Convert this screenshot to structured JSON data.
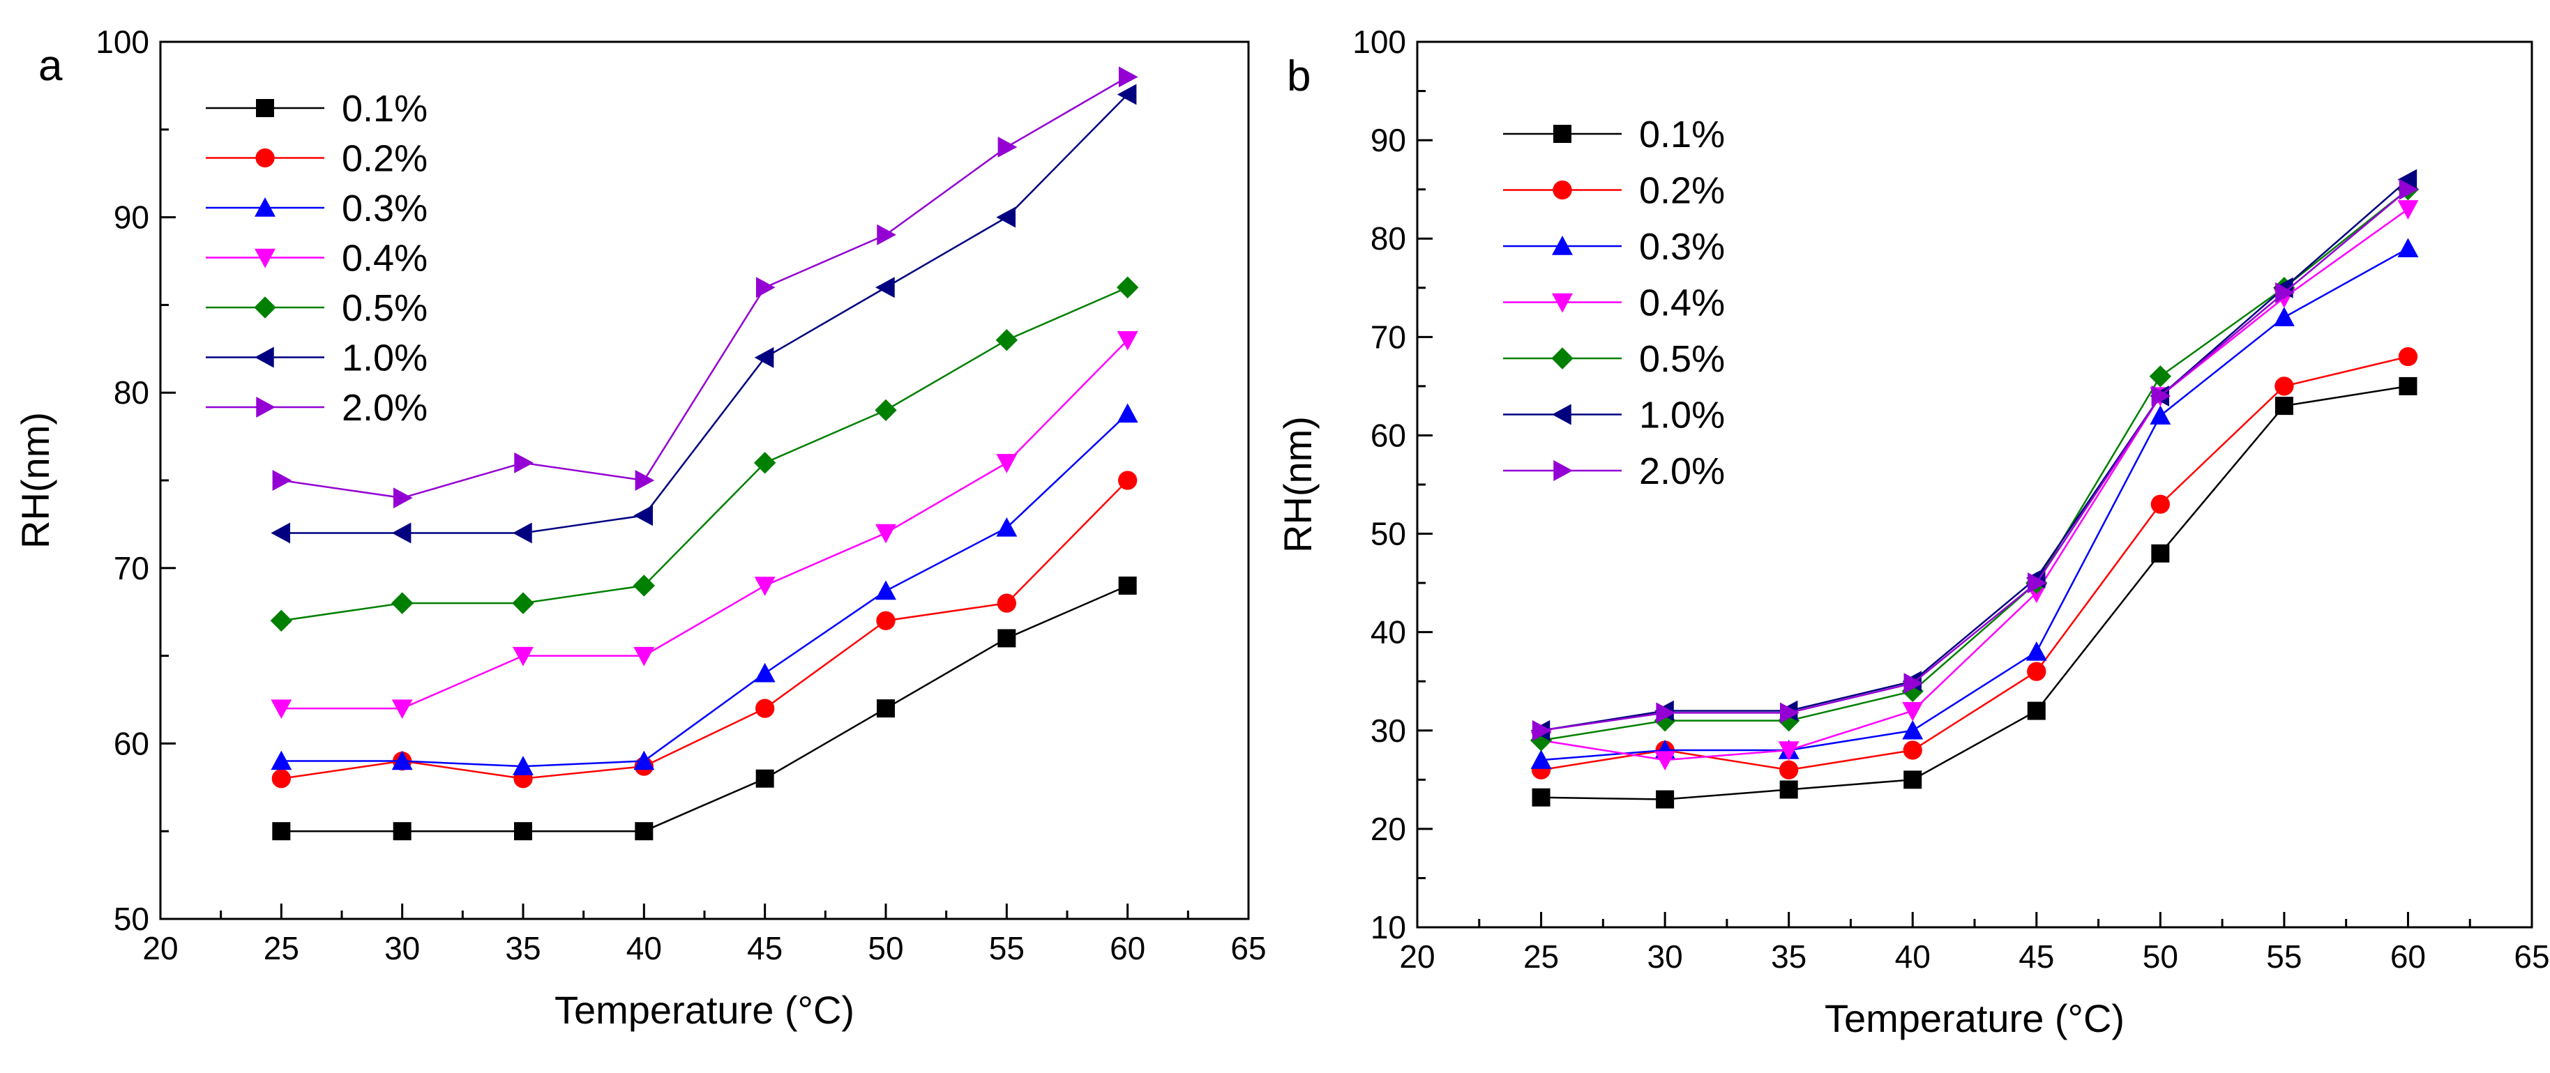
{
  "chart_data": [
    {
      "type": "line",
      "panel_label": "a",
      "xlabel": "Temperature (°C)",
      "ylabel": "RH(nm)",
      "xlim": [
        20,
        65
      ],
      "ylim": [
        50,
        100
      ],
      "x_ticks": [
        20,
        25,
        30,
        35,
        40,
        45,
        50,
        55,
        60,
        65
      ],
      "y_ticks": [
        50,
        60,
        70,
        80,
        90,
        100
      ],
      "x": [
        25,
        30,
        35,
        40,
        45,
        50,
        55,
        60
      ],
      "legend_position": "top-left",
      "series": [
        {
          "name": "0.1%",
          "color": "#000000",
          "marker": "square",
          "values": [
            55,
            55,
            55,
            55,
            58,
            62,
            66,
            69
          ]
        },
        {
          "name": "0.2%",
          "color": "#ff0000",
          "marker": "circle",
          "values": [
            58,
            59,
            58,
            58.7,
            62,
            67,
            68,
            75
          ]
        },
        {
          "name": "0.3%",
          "color": "#0000ff",
          "marker": "triangle-up",
          "values": [
            59,
            59,
            58.7,
            59,
            64,
            68.7,
            72.3,
            78.8
          ]
        },
        {
          "name": "0.4%",
          "color": "#ff00ff",
          "marker": "triangle-down",
          "values": [
            62,
            62,
            65,
            65,
            69,
            72,
            76,
            83
          ]
        },
        {
          "name": "0.5%",
          "color": "#008000",
          "marker": "diamond",
          "values": [
            67,
            68,
            68,
            69,
            76,
            79,
            83,
            86
          ]
        },
        {
          "name": "1.0%",
          "color": "#000080",
          "marker": "triangle-left",
          "values": [
            72,
            72,
            72,
            73,
            82,
            86,
            90,
            97
          ]
        },
        {
          "name": "2.0%",
          "color": "#9400d3",
          "marker": "triangle-right",
          "values": [
            75,
            74,
            76,
            75,
            86,
            89,
            94,
            98
          ]
        }
      ]
    },
    {
      "type": "line",
      "panel_label": "b",
      "xlabel": "Temperature (°C)",
      "ylabel": "RH(nm)",
      "xlim": [
        20,
        65
      ],
      "ylim": [
        10,
        100
      ],
      "x_ticks": [
        20,
        25,
        30,
        35,
        40,
        45,
        50,
        55,
        60,
        65
      ],
      "y_ticks": [
        10,
        20,
        30,
        40,
        50,
        60,
        70,
        80,
        90,
        100
      ],
      "x": [
        25,
        30,
        35,
        40,
        45,
        50,
        55,
        60
      ],
      "legend_position": "top-left",
      "series": [
        {
          "name": "0.1%",
          "color": "#000000",
          "marker": "square",
          "values": [
            23.2,
            23,
            24,
            25,
            32,
            48,
            63,
            65
          ]
        },
        {
          "name": "0.2%",
          "color": "#ff0000",
          "marker": "circle",
          "values": [
            26,
            28,
            26,
            28,
            36,
            53,
            65,
            68
          ]
        },
        {
          "name": "0.3%",
          "color": "#0000ff",
          "marker": "triangle-up",
          "values": [
            27,
            28,
            28,
            30,
            38,
            62,
            72,
            79
          ]
        },
        {
          "name": "0.4%",
          "color": "#ff00ff",
          "marker": "triangle-down",
          "values": [
            29,
            27,
            28,
            32,
            44,
            64,
            74,
            83
          ]
        },
        {
          "name": "0.5%",
          "color": "#008000",
          "marker": "diamond",
          "values": [
            29,
            31,
            31,
            34,
            45,
            66,
            75,
            85
          ]
        },
        {
          "name": "1.0%",
          "color": "#000080",
          "marker": "triangle-left",
          "values": [
            30,
            32,
            32,
            35,
            45.5,
            64,
            75,
            86
          ]
        },
        {
          "name": "2.0%",
          "color": "#9400d3",
          "marker": "triangle-right",
          "values": [
            30,
            31.8,
            31.8,
            34.8,
            45,
            64,
            74.5,
            85
          ]
        }
      ]
    }
  ]
}
